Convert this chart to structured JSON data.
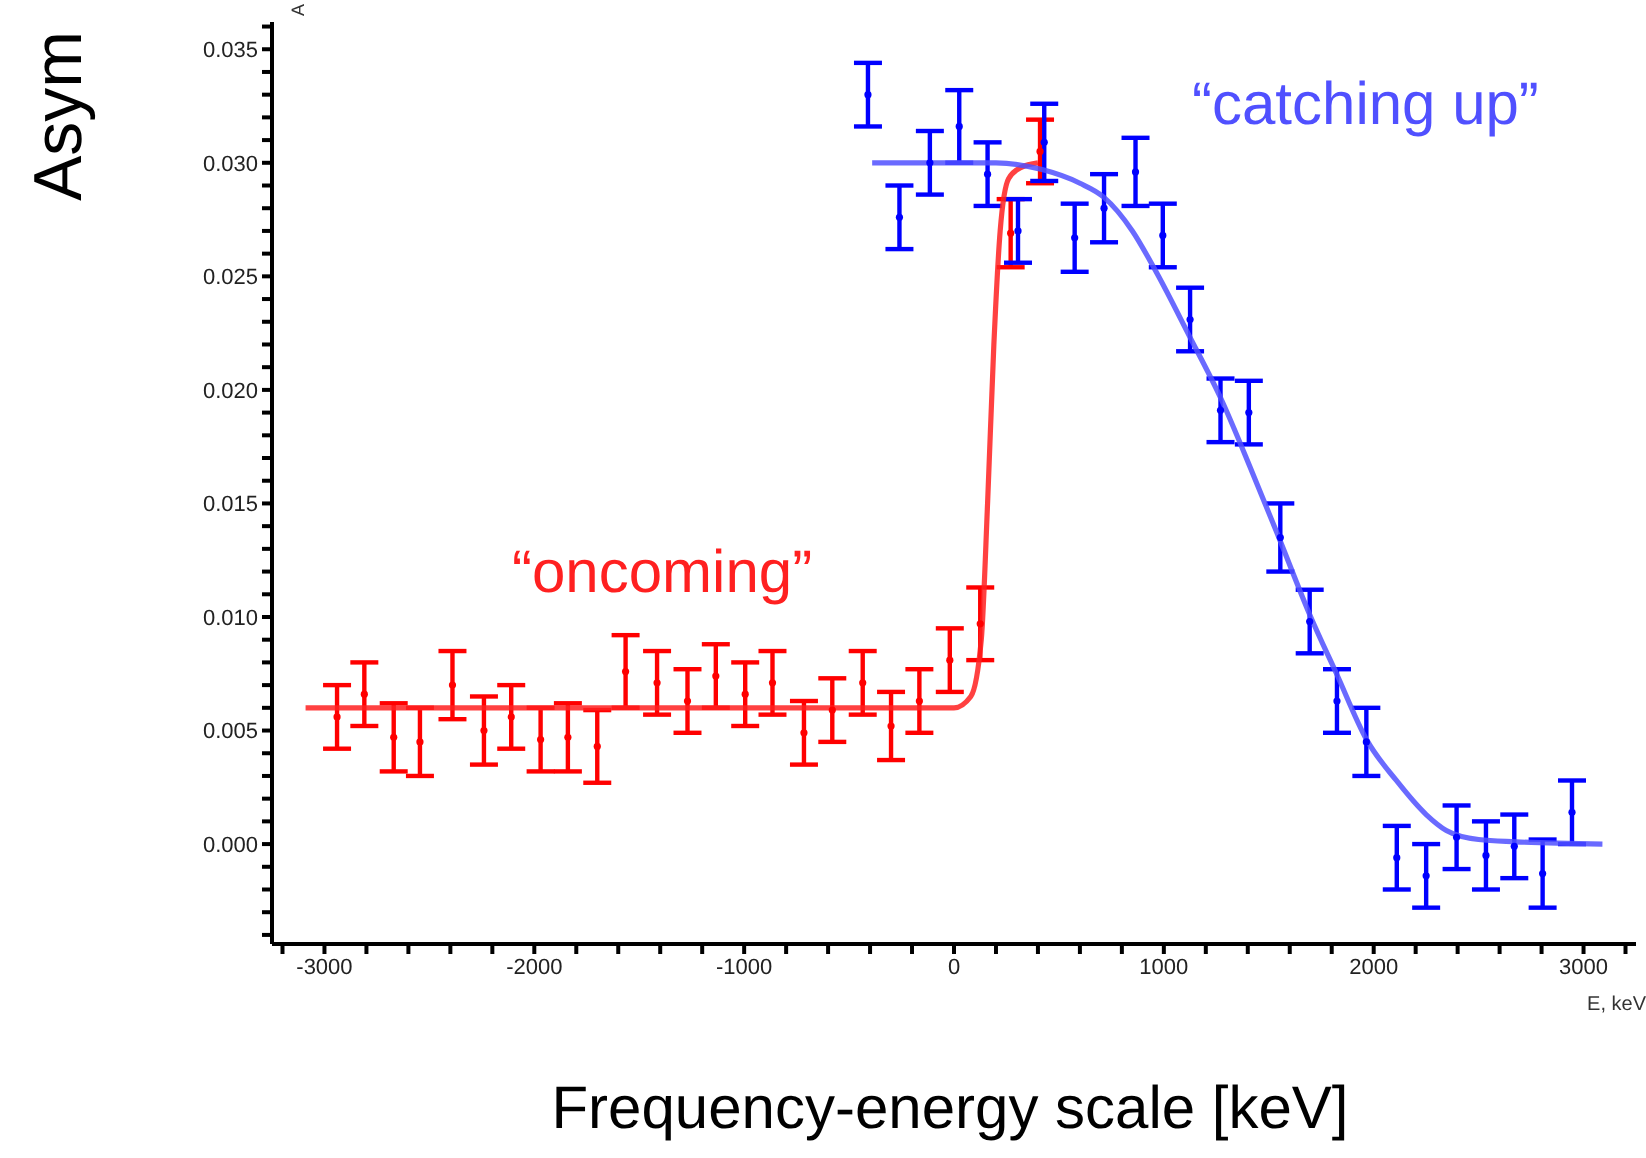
{
  "chart_data": {
    "type": "scatter",
    "xlabel": "Frequency-energy scale [keV]",
    "ylabel": "Asym",
    "grid": false,
    "xlim": [
      -3250,
      3250
    ],
    "ylim": [
      -0.0044,
      0.0362
    ],
    "xticks": [
      {
        "value": -3200,
        "label": null
      },
      -3000,
      {
        "value": -2800,
        "label": null
      },
      {
        "value": -2600,
        "label": null
      },
      {
        "value": -2400,
        "label": null
      },
      {
        "value": -2200,
        "label": null
      },
      -2000,
      {
        "value": -1800,
        "label": null
      },
      {
        "value": -1600,
        "label": null
      },
      {
        "value": -1400,
        "label": null
      },
      {
        "value": -1200,
        "label": null
      },
      -1000,
      {
        "value": -800,
        "label": null
      },
      {
        "value": -600,
        "label": null
      },
      {
        "value": -400,
        "label": null
      },
      {
        "value": -200,
        "label": null
      },
      0,
      {
        "value": 200,
        "label": null
      },
      {
        "value": 400,
        "label": null
      },
      {
        "value": 600,
        "label": null
      },
      {
        "value": 800,
        "label": null
      },
      1000,
      {
        "value": 1200,
        "label": null
      },
      {
        "value": 1400,
        "label": null
      },
      {
        "value": 1600,
        "label": null
      },
      {
        "value": 1800,
        "label": null
      },
      2000,
      {
        "value": 2200,
        "label": null
      },
      {
        "value": 2400,
        "label": null
      },
      {
        "value": 2600,
        "label": null
      },
      {
        "value": 2800,
        "label": null
      },
      3000,
      {
        "value": 3200,
        "label": null
      }
    ],
    "yticks": [
      {
        "value": -0.004,
        "label": null
      },
      {
        "value": -0.003,
        "label": null
      },
      {
        "value": -0.002,
        "label": null
      },
      {
        "value": -0.001,
        "label": null
      },
      {
        "value": 0,
        "label": "0.000"
      },
      {
        "value": 0.001,
        "label": null
      },
      {
        "value": 0.002,
        "label": null
      },
      {
        "value": 0.003,
        "label": null
      },
      {
        "value": 0.004,
        "label": null
      },
      {
        "value": 0.005,
        "label": "0.005"
      },
      {
        "value": 0.006,
        "label": null
      },
      {
        "value": 0.007,
        "label": null
      },
      {
        "value": 0.008,
        "label": null
      },
      {
        "value": 0.009,
        "label": null
      },
      {
        "value": 0.01,
        "label": "0.010"
      },
      {
        "value": 0.011,
        "label": null
      },
      {
        "value": 0.012,
        "label": null
      },
      {
        "value": 0.013,
        "label": null
      },
      {
        "value": 0.014,
        "label": null
      },
      {
        "value": 0.015,
        "label": "0.015"
      },
      {
        "value": 0.016,
        "label": null
      },
      {
        "value": 0.017,
        "label": null
      },
      {
        "value": 0.018,
        "label": null
      },
      {
        "value": 0.019,
        "label": null
      },
      {
        "value": 0.02,
        "label": "0.020"
      },
      {
        "value": 0.021,
        "label": null
      },
      {
        "value": 0.022,
        "label": null
      },
      {
        "value": 0.023,
        "label": null
      },
      {
        "value": 0.024,
        "label": null
      },
      {
        "value": 0.025,
        "label": "0.025"
      },
      {
        "value": 0.026,
        "label": null
      },
      {
        "value": 0.027,
        "label": null
      },
      {
        "value": 0.028,
        "label": null
      },
      {
        "value": 0.029,
        "label": null
      },
      {
        "value": 0.03,
        "label": "0.030"
      },
      {
        "value": 0.031,
        "label": null
      },
      {
        "value": 0.032,
        "label": null
      },
      {
        "value": 0.033,
        "label": null
      },
      {
        "value": 0.034,
        "label": null
      },
      {
        "value": 0.035,
        "label": "0.035"
      },
      {
        "value": 0.036,
        "label": null
      }
    ],
    "series": [
      {
        "color": "#ff0000",
        "x": [
          -2940,
          -2810,
          -2670,
          -2545,
          -2390,
          -2240,
          -2110,
          -1970,
          -1840,
          -1700,
          -1565,
          -1415,
          -1270,
          -1135,
          -995,
          -865,
          -715,
          -580,
          -435,
          -300,
          -165,
          -20,
          125,
          270,
          410
        ],
        "values": [
          0.0056,
          0.0066,
          0.0047,
          0.0045,
          0.007,
          0.005,
          0.0056,
          0.0046,
          0.0047,
          0.0043,
          0.0076,
          0.0071,
          0.0063,
          0.0074,
          0.0066,
          0.0071,
          0.0049,
          0.0059,
          0.0071,
          0.0052,
          0.0063,
          0.0081,
          0.0097,
          0.0269,
          0.0305
        ],
        "errors": [
          0.0014,
          0.0014,
          0.0015,
          0.0015,
          0.0015,
          0.0015,
          0.0014,
          0.0014,
          0.0015,
          0.0016,
          0.0016,
          0.0014,
          0.0014,
          0.0014,
          0.0014,
          0.0014,
          0.0014,
          0.0014,
          0.0014,
          0.0015,
          0.0014,
          0.0014,
          0.0016,
          0.0015,
          0.0014
        ]
      },
      {
        "color": "#0000ff",
        "x": [
          -410,
          -260,
          -115,
          25,
          160,
          305,
          430,
          575,
          715,
          865,
          995,
          1125,
          1270,
          1405,
          1555,
          1695,
          1825,
          1965,
          2110,
          2250,
          2395,
          2535,
          2670,
          2805,
          2945
        ],
        "values": [
          0.033,
          0.0276,
          0.03,
          0.0316,
          0.0295,
          0.027,
          0.0309,
          0.0267,
          0.028,
          0.0296,
          0.0268,
          0.0231,
          0.0191,
          0.019,
          0.0135,
          0.0098,
          0.0063,
          0.0045,
          -0.0006,
          -0.0014,
          0.0003,
          -0.0005,
          -0.0001,
          -0.0013,
          0.0014
        ],
        "errors": [
          0.0014,
          0.0014,
          0.0014,
          0.0016,
          0.0014,
          0.0014,
          0.0017,
          0.0015,
          0.0015,
          0.0015,
          0.0014,
          0.0014,
          0.0014,
          0.0014,
          0.0015,
          0.0014,
          0.0014,
          0.0015,
          0.0014,
          0.0014,
          0.0014,
          0.0015,
          0.0014,
          0.0015,
          0.0014
        ]
      },
      {
        "type": "line",
        "name": "“oncoming”",
        "marker": "none",
        "color": "#ff2020",
        "x": [
          -3090,
          0,
          80,
          130,
          160,
          190,
          220,
          260,
          320,
          400
        ],
        "values": [
          0.006,
          0.006,
          0.0065,
          0.009,
          0.015,
          0.022,
          0.027,
          0.0293,
          0.0298,
          0.03
        ]
      },
      {
        "type": "line",
        "name": "“catching up”",
        "marker": "none",
        "color": "#5050ff",
        "x": [
          -390,
          200,
          420,
          600,
          712,
          850,
          969,
          1120,
          1273,
          1420,
          1548,
          1700,
          1823,
          1966,
          2108,
          2250,
          2346,
          2500,
          2678,
          3090
        ],
        "values": [
          0.03,
          0.03,
          0.0297,
          0.0291,
          0.0285,
          0.027,
          0.0251,
          0.0224,
          0.0196,
          0.0164,
          0.0135,
          0.01,
          0.0075,
          0.0046,
          0.0028,
          0.0013,
          0.0006,
          0.0002,
          0.0001,
          0
        ]
      }
    ],
    "annotations": [
      "A",
      "E, keV"
    ]
  }
}
